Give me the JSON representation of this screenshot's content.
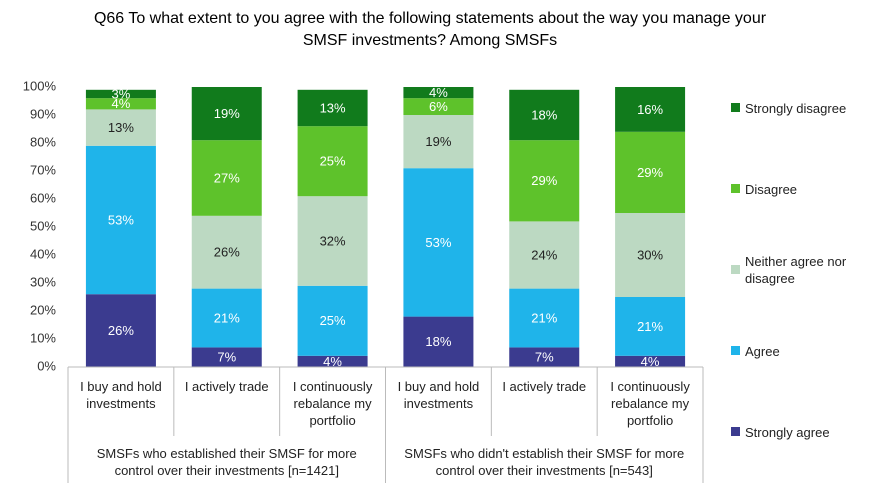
{
  "chart_data": {
    "type": "stacked_bar",
    "title": "Q66 To what extent to you agree with the following statements about the way you manage your SMSF investments? Among SMSFs",
    "categories": [
      "I buy and hold investments",
      "I actively trade",
      "I continuously rebalance my portfolio",
      "I buy and hold investments",
      "I actively trade",
      "I continuously rebalance my portfolio"
    ],
    "groups": [
      "SMSFs who established their SMSF for more control over their investments [n=1421]",
      "SMSFs who didn't establish their SMSF for more control over their investments [n=543]"
    ],
    "series": [
      {
        "name": "Strongly agree",
        "color": "#3b3b8f",
        "values": [
          26,
          7,
          4,
          18,
          7,
          4
        ],
        "value_labels": [
          "26%",
          "7%",
          "4%",
          "18%",
          "7%",
          "4%"
        ]
      },
      {
        "name": "Agree",
        "color": "#1fb4ea",
        "values": [
          53,
          21,
          25,
          53,
          21,
          21
        ],
        "value_labels": [
          "53%",
          "21%",
          "25%",
          "53%",
          "21%",
          "21%"
        ]
      },
      {
        "name": "Neither agree nor disagree",
        "color": "#bcd9c2",
        "values": [
          13,
          26,
          32,
          19,
          24,
          30
        ],
        "value_labels": [
          "13%",
          "26%",
          "32%",
          "19%",
          "24%",
          "30%"
        ]
      },
      {
        "name": "Disagree",
        "color": "#5ec22b",
        "values": [
          4,
          27,
          25,
          6,
          29,
          29
        ],
        "value_labels": [
          "4%",
          "27%",
          "25%",
          "6%",
          "29%",
          "29%"
        ]
      },
      {
        "name": "Strongly disagree",
        "color": "#117b1c",
        "values": [
          3,
          19,
          13,
          4,
          18,
          16
        ],
        "value_labels": [
          "3%",
          "19%",
          "13%",
          "4%",
          "18%",
          "16%"
        ]
      }
    ],
    "ylim": [
      0,
      100
    ],
    "yticks": [
      {
        "value": 0,
        "label": "0%"
      },
      {
        "value": 10,
        "label": "10%"
      },
      {
        "value": 20,
        "label": "20%"
      },
      {
        "value": 30,
        "label": "30%"
      },
      {
        "value": 40,
        "label": "40%"
      },
      {
        "value": 50,
        "label": "50%"
      },
      {
        "value": 60,
        "label": "60%"
      },
      {
        "value": 70,
        "label": "70%"
      },
      {
        "value": 80,
        "label": "80%"
      },
      {
        "value": 90,
        "label": "90%"
      },
      {
        "value": 100,
        "label": "100%"
      }
    ],
    "grid": false,
    "legend": "right"
  }
}
